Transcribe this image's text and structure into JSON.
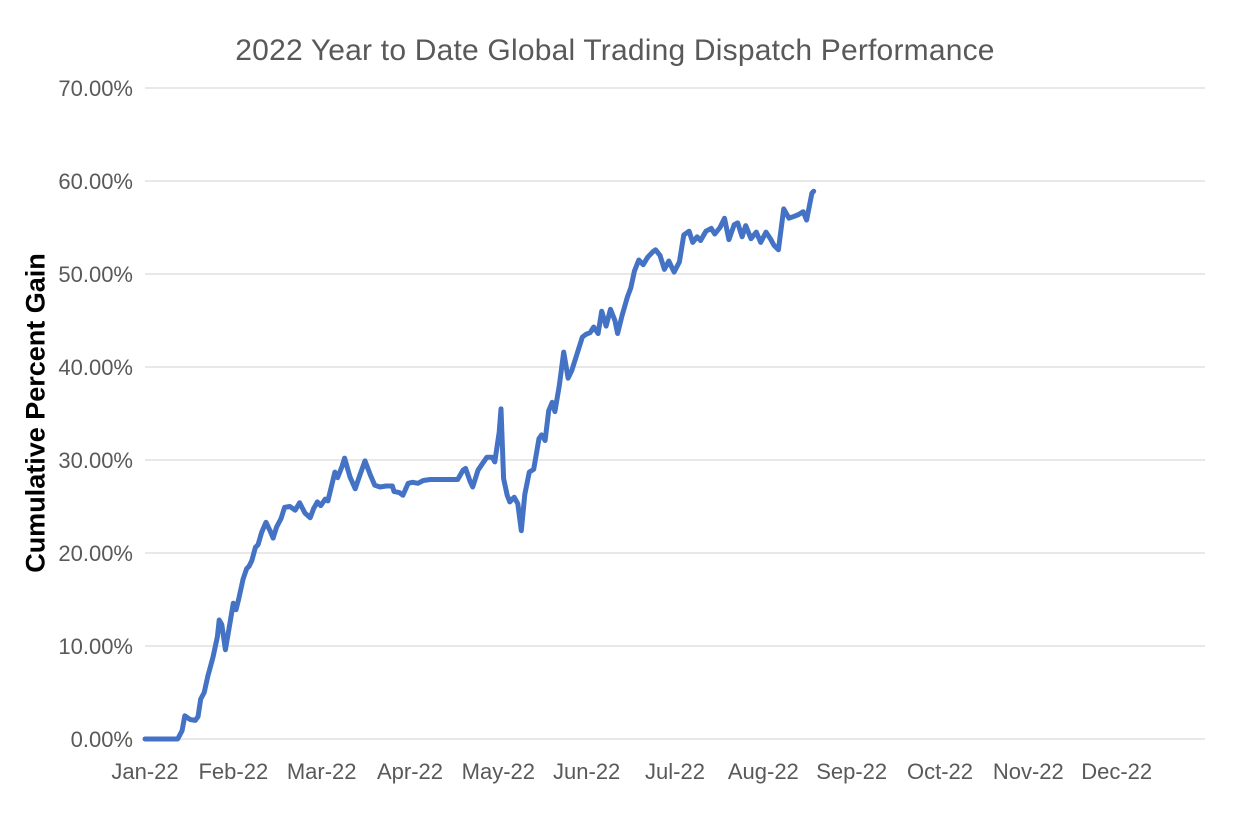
{
  "chart_data": {
    "type": "line",
    "title": "2022 Year to Date Global Trading Dispatch Performance",
    "xlabel": "",
    "ylabel": "Cumulative Percent Gain",
    "legend": "none",
    "grid": "horizontal",
    "ylim": [
      0,
      70
    ],
    "xlim_months": [
      0,
      12
    ],
    "y_tick_values": [
      0,
      10,
      20,
      30,
      40,
      50,
      60,
      70
    ],
    "y_tick_labels": [
      "0.00%",
      "10.00%",
      "20.00%",
      "30.00%",
      "40.00%",
      "50.00%",
      "60.00%",
      "70.00%"
    ],
    "x_tick_labels": [
      "Jan-22",
      "Feb-22",
      "Mar-22",
      "Apr-22",
      "May-22",
      "Jun-22",
      "Jul-22",
      "Aug-22",
      "Sep-22",
      "Oct-22",
      "Nov-22",
      "Dec-22"
    ],
    "series": [
      {
        "name": "Cumulative Percent Gain",
        "points": [
          [
            0.0,
            0.0
          ],
          [
            0.12,
            0.0
          ],
          [
            0.24,
            0.0
          ],
          [
            0.37,
            0.0
          ],
          [
            0.42,
            0.9
          ],
          [
            0.45,
            2.5
          ],
          [
            0.51,
            2.1
          ],
          [
            0.57,
            2.0
          ],
          [
            0.6,
            2.4
          ],
          [
            0.63,
            4.3
          ],
          [
            0.67,
            5.0
          ],
          [
            0.71,
            6.7
          ],
          [
            0.77,
            8.8
          ],
          [
            0.82,
            11.0
          ],
          [
            0.84,
            12.8
          ],
          [
            0.87,
            12.3
          ],
          [
            0.91,
            9.6
          ],
          [
            0.95,
            11.8
          ],
          [
            1.0,
            14.6
          ],
          [
            1.03,
            13.9
          ],
          [
            1.06,
            15.0
          ],
          [
            1.11,
            17.2
          ],
          [
            1.15,
            18.3
          ],
          [
            1.18,
            18.6
          ],
          [
            1.21,
            19.2
          ],
          [
            1.25,
            20.6
          ],
          [
            1.28,
            20.9
          ],
          [
            1.32,
            22.2
          ],
          [
            1.37,
            23.3
          ],
          [
            1.42,
            22.3
          ],
          [
            1.45,
            21.6
          ],
          [
            1.49,
            22.8
          ],
          [
            1.54,
            23.7
          ],
          [
            1.58,
            24.9
          ],
          [
            1.64,
            25.0
          ],
          [
            1.7,
            24.6
          ],
          [
            1.75,
            25.4
          ],
          [
            1.81,
            24.3
          ],
          [
            1.87,
            23.8
          ],
          [
            1.91,
            24.8
          ],
          [
            1.95,
            25.5
          ],
          [
            1.99,
            25.1
          ],
          [
            2.04,
            25.8
          ],
          [
            2.07,
            25.6
          ],
          [
            2.15,
            28.7
          ],
          [
            2.18,
            28.1
          ],
          [
            2.23,
            29.3
          ],
          [
            2.26,
            30.2
          ],
          [
            2.32,
            28.2
          ],
          [
            2.38,
            26.9
          ],
          [
            2.43,
            28.3
          ],
          [
            2.49,
            29.9
          ],
          [
            2.55,
            28.4
          ],
          [
            2.6,
            27.3
          ],
          [
            2.66,
            27.1
          ],
          [
            2.73,
            27.2
          ],
          [
            2.8,
            27.2
          ],
          [
            2.82,
            26.6
          ],
          [
            2.88,
            26.5
          ],
          [
            2.92,
            26.2
          ],
          [
            2.98,
            27.5
          ],
          [
            3.03,
            27.6
          ],
          [
            3.09,
            27.5
          ],
          [
            3.15,
            27.8
          ],
          [
            3.23,
            27.9
          ],
          [
            3.34,
            27.9
          ],
          [
            3.45,
            27.9
          ],
          [
            3.54,
            27.9
          ],
          [
            3.6,
            28.9
          ],
          [
            3.63,
            29.1
          ],
          [
            3.68,
            27.7
          ],
          [
            3.71,
            27.1
          ],
          [
            3.77,
            28.9
          ],
          [
            3.82,
            29.6
          ],
          [
            3.87,
            30.3
          ],
          [
            3.93,
            30.3
          ],
          [
            3.96,
            29.8
          ],
          [
            4.01,
            33.0
          ],
          [
            4.03,
            35.5
          ],
          [
            4.06,
            28.0
          ],
          [
            4.1,
            26.2
          ],
          [
            4.13,
            25.5
          ],
          [
            4.18,
            26.0
          ],
          [
            4.22,
            25.3
          ],
          [
            4.26,
            22.4
          ],
          [
            4.3,
            26.3
          ],
          [
            4.35,
            28.7
          ],
          [
            4.4,
            29.0
          ],
          [
            4.46,
            32.3
          ],
          [
            4.49,
            32.7
          ],
          [
            4.53,
            32.1
          ],
          [
            4.57,
            35.3
          ],
          [
            4.61,
            36.2
          ],
          [
            4.64,
            35.2
          ],
          [
            4.69,
            38.0
          ],
          [
            4.74,
            41.6
          ],
          [
            4.79,
            38.8
          ],
          [
            4.83,
            39.6
          ],
          [
            4.89,
            41.4
          ],
          [
            4.95,
            43.2
          ],
          [
            4.99,
            43.5
          ],
          [
            5.04,
            43.7
          ],
          [
            5.08,
            44.3
          ],
          [
            5.13,
            43.6
          ],
          [
            5.17,
            46.0
          ],
          [
            5.22,
            44.4
          ],
          [
            5.27,
            46.2
          ],
          [
            5.32,
            45.0
          ],
          [
            5.35,
            43.6
          ],
          [
            5.4,
            45.5
          ],
          [
            5.46,
            47.5
          ],
          [
            5.5,
            48.5
          ],
          [
            5.54,
            50.3
          ],
          [
            5.59,
            51.5
          ],
          [
            5.64,
            51.0
          ],
          [
            5.69,
            51.8
          ],
          [
            5.75,
            52.4
          ],
          [
            5.78,
            52.6
          ],
          [
            5.83,
            52.0
          ],
          [
            5.88,
            50.5
          ],
          [
            5.93,
            51.4
          ],
          [
            5.99,
            50.2
          ],
          [
            6.05,
            51.3
          ],
          [
            6.1,
            54.2
          ],
          [
            6.16,
            54.6
          ],
          [
            6.2,
            53.4
          ],
          [
            6.25,
            54.0
          ],
          [
            6.29,
            53.6
          ],
          [
            6.35,
            54.6
          ],
          [
            6.41,
            54.9
          ],
          [
            6.45,
            54.3
          ],
          [
            6.51,
            55.0
          ],
          [
            6.56,
            56.0
          ],
          [
            6.61,
            53.7
          ],
          [
            6.67,
            55.3
          ],
          [
            6.71,
            55.5
          ],
          [
            6.76,
            54.0
          ],
          [
            6.8,
            55.2
          ],
          [
            6.86,
            53.8
          ],
          [
            6.92,
            54.5
          ],
          [
            6.97,
            53.4
          ],
          [
            7.03,
            54.5
          ],
          [
            7.08,
            53.8
          ],
          [
            7.12,
            53.1
          ],
          [
            7.17,
            52.6
          ],
          [
            7.23,
            57.0
          ],
          [
            7.29,
            56.0
          ],
          [
            7.35,
            56.2
          ],
          [
            7.4,
            56.4
          ],
          [
            7.45,
            56.7
          ],
          [
            7.49,
            55.8
          ],
          [
            7.55,
            58.7
          ],
          [
            7.57,
            58.9
          ]
        ]
      }
    ]
  },
  "colors": {
    "line": "#4472C4",
    "gridline": "#D9D9D9",
    "tick_text": "#595959",
    "title_text": "#595959",
    "axis_title_text": "#000000",
    "background": "#FFFFFF"
  }
}
